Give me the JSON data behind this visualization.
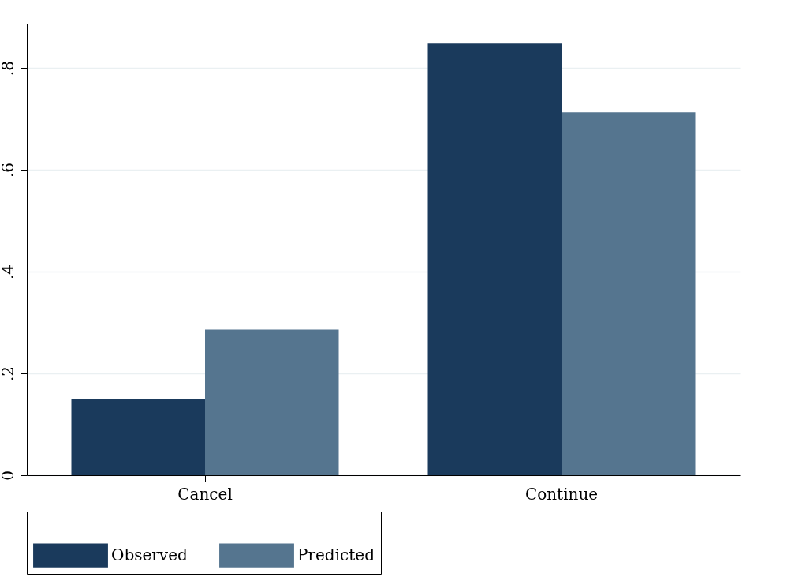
{
  "chart_data": {
    "type": "bar",
    "categories": [
      "Cancel",
      "Continue"
    ],
    "series": [
      {
        "name": "Observed",
        "color": "#1a3a5c",
        "values": [
          0.15,
          0.848
        ]
      },
      {
        "name": "Predicted",
        "color": "#55758f",
        "values": [
          0.286,
          0.713
        ]
      }
    ],
    "ylim": [
      0,
      0.887
    ],
    "yticks": [
      0,
      {
        "value": 0.2,
        "label": ".2"
      },
      {
        "value": 0.4,
        "label": ".4"
      },
      {
        "value": 0.6,
        "label": ".6"
      },
      {
        "value": 0.8,
        "label": ".8"
      }
    ],
    "grid": "y",
    "legend": "bottom"
  }
}
